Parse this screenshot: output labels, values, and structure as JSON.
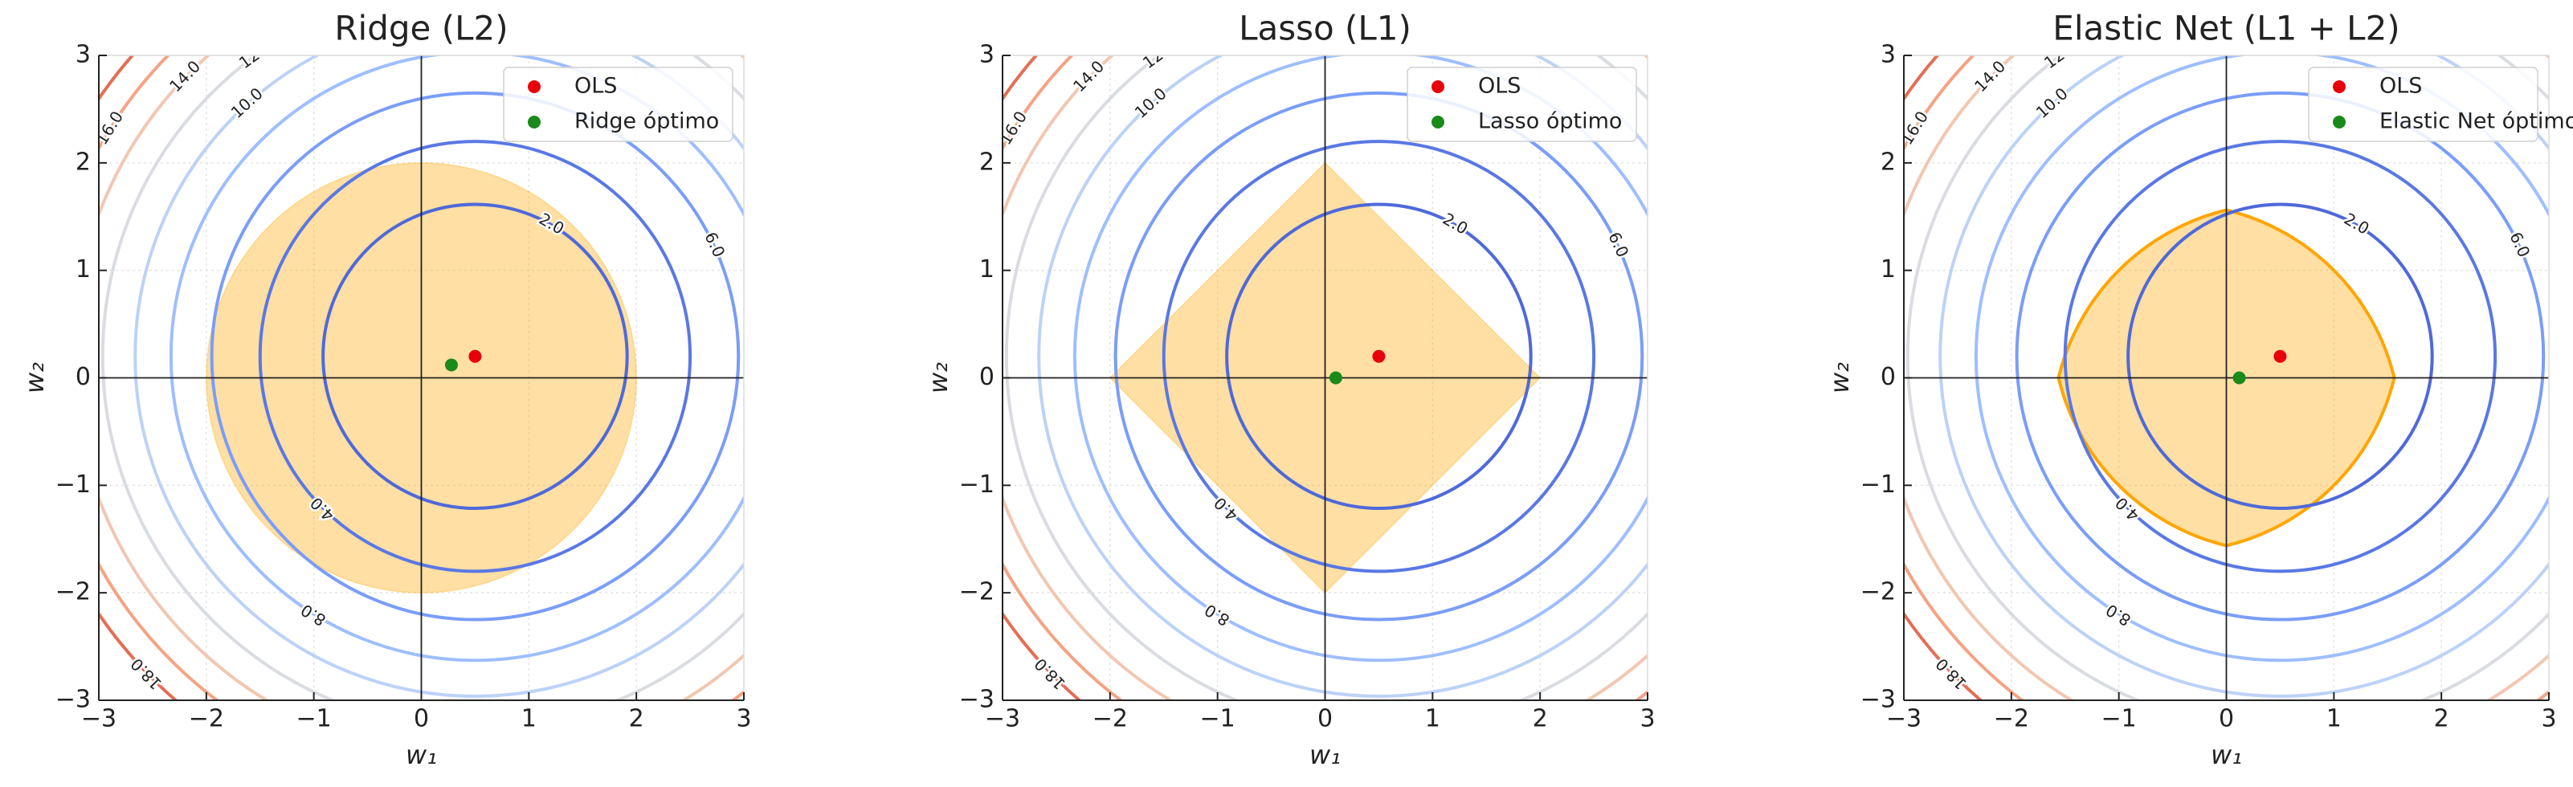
{
  "chart_data": [
    {
      "type": "contour",
      "title": "Ridge (L2)",
      "xlabel": "w₁",
      "ylabel": "w₂",
      "xlim": [
        -3,
        3
      ],
      "ylim": [
        -3,
        3
      ],
      "xticks": [
        {
          "value": -3,
          "label": "−3"
        },
        {
          "value": -2,
          "label": "−2"
        },
        {
          "value": -1,
          "label": "−1"
        },
        0,
        1,
        2,
        3
      ],
      "yticks": [
        {
          "value": -3,
          "label": "−3"
        },
        {
          "value": -2,
          "label": "−2"
        },
        {
          "value": -1,
          "label": "−1"
        },
        0,
        1,
        2,
        3
      ],
      "grid": true,
      "levels": [
        {
          "value": 2,
          "label": "2.0",
          "color": "#4f69d9"
        },
        {
          "value": 4,
          "label": "4.0",
          "color": "#5a78e4"
        },
        {
          "value": 6,
          "label": "6.0",
          "color": "#7a9df8"
        },
        {
          "value": 8,
          "label": "8.0",
          "color": "#9ebeff"
        },
        {
          "value": 10,
          "label": "10.0",
          "color": "#bcd2f7"
        },
        {
          "value": 12,
          "label": "12.0",
          "color": "#d9dce1"
        },
        {
          "value": 14,
          "label": "14.0",
          "color": "#f1c7b1"
        },
        {
          "value": 16,
          "label": "16.0",
          "color": "#f4a384"
        },
        {
          "value": 18,
          "label": "18.0",
          "color": "#e36e55"
        }
      ],
      "constraint": {
        "shape": "l2",
        "radius": 2,
        "color": "#ffa500",
        "edge": false
      },
      "series": [
        {
          "name": "OLS",
          "color": "#e8000b",
          "x": 0.5,
          "y": 0.2
        },
        {
          "name": "Ridge óptimo",
          "color": "#1a8a1a",
          "x": 0.28,
          "y": 0.12
        }
      ],
      "legend": "upper right"
    },
    {
      "type": "contour",
      "title": "Lasso (L1)",
      "xlabel": "w₁",
      "ylabel": "w₂",
      "xlim": [
        -3,
        3
      ],
      "ylim": [
        -3,
        3
      ],
      "xticks": [
        {
          "value": -3,
          "label": "−3"
        },
        {
          "value": -2,
          "label": "−2"
        },
        {
          "value": -1,
          "label": "−1"
        },
        0,
        1,
        2,
        3
      ],
      "yticks": [
        {
          "value": -3,
          "label": "−3"
        },
        {
          "value": -2,
          "label": "−2"
        },
        {
          "value": -1,
          "label": "−1"
        },
        0,
        1,
        2,
        3
      ],
      "grid": true,
      "levels": [
        {
          "value": 2,
          "label": "2.0",
          "color": "#4f69d9"
        },
        {
          "value": 4,
          "label": "4.0",
          "color": "#5a78e4"
        },
        {
          "value": 6,
          "label": "6.0",
          "color": "#7a9df8"
        },
        {
          "value": 8,
          "label": "8.0",
          "color": "#9ebeff"
        },
        {
          "value": 10,
          "label": "10.0",
          "color": "#bcd2f7"
        },
        {
          "value": 12,
          "label": "12.0",
          "color": "#d9dce1"
        },
        {
          "value": 14,
          "label": "14.0",
          "color": "#f1c7b1"
        },
        {
          "value": 16,
          "label": "16.0",
          "color": "#f4a384"
        },
        {
          "value": 18,
          "label": "18.0",
          "color": "#e36e55"
        }
      ],
      "constraint": {
        "shape": "l1",
        "radius": 2,
        "color": "#ffa500",
        "edge": false
      },
      "series": [
        {
          "name": "OLS",
          "color": "#e8000b",
          "x": 0.5,
          "y": 0.2
        },
        {
          "name": "Lasso óptimo",
          "color": "#1a8a1a",
          "x": 0.1,
          "y": 0
        }
      ],
      "legend": "upper right"
    },
    {
      "type": "contour",
      "title": "Elastic Net (L1 + L2)",
      "xlabel": "w₁",
      "ylabel": "w₂",
      "xlim": [
        -3,
        3
      ],
      "ylim": [
        -3,
        3
      ],
      "xticks": [
        {
          "value": -3,
          "label": "−3"
        },
        {
          "value": -2,
          "label": "−2"
        },
        {
          "value": -1,
          "label": "−1"
        },
        0,
        1,
        2,
        3
      ],
      "yticks": [
        {
          "value": -3,
          "label": "−3"
        },
        {
          "value": -2,
          "label": "−2"
        },
        {
          "value": -1,
          "label": "−1"
        },
        0,
        1,
        2,
        3
      ],
      "grid": true,
      "levels": [
        {
          "value": 2,
          "label": "2.0",
          "color": "#4f69d9"
        },
        {
          "value": 4,
          "label": "4.0",
          "color": "#5a78e4"
        },
        {
          "value": 6,
          "label": "6.0",
          "color": "#7a9df8"
        },
        {
          "value": 8,
          "label": "8.0",
          "color": "#9ebeff"
        },
        {
          "value": 10,
          "label": "10.0",
          "color": "#bcd2f7"
        },
        {
          "value": 12,
          "label": "12.0",
          "color": "#d9dce1"
        },
        {
          "value": 14,
          "label": "14.0",
          "color": "#f1c7b1"
        },
        {
          "value": 16,
          "label": "16.0",
          "color": "#f4a384"
        },
        {
          "value": 18,
          "label": "18.0",
          "color": "#e36e55"
        }
      ],
      "constraint": {
        "shape": "elastic_net",
        "t": 2,
        "l1_ratio": 0.5,
        "color": "#ffa500",
        "edge": true
      },
      "series": [
        {
          "name": "OLS",
          "color": "#e8000b",
          "x": 0.5,
          "y": 0.2
        },
        {
          "name": "Elastic Net óptimo",
          "color": "#1a8a1a",
          "x": 0.12,
          "y": 0
        }
      ],
      "legend": "upper right"
    }
  ]
}
